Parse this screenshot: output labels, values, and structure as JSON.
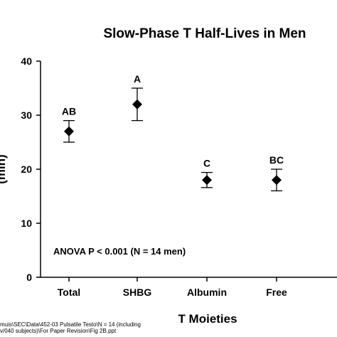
{
  "chart_data": {
    "type": "scatter",
    "title": "Slow-Phase T Half-Lives in Men",
    "xlabel": "T Moieties",
    "ylabel": "(min)",
    "categories": [
      "Total",
      "SHBG",
      "Albumin",
      "Free"
    ],
    "series": [
      {
        "values": [
          27,
          32,
          18,
          18
        ],
        "error_low": [
          25,
          29,
          16.6,
          16
        ],
        "error_high": [
          29,
          35,
          19.4,
          20
        ],
        "labels": [
          "AB",
          "A",
          "C",
          "BC"
        ]
      }
    ],
    "ylim": [
      0,
      40
    ],
    "yticks": [
      "0",
      "10",
      "20",
      "30",
      "40"
    ],
    "marker": "diamond",
    "grid": false,
    "annotation": "ANOVA P < 0.001 (N = 14 men)"
  },
  "footer": {
    "line1": "muis\\SEC\\Data\\452-03 Pulsatile Testo\\N = 14 (including",
    "line2": "v/040 subjects)\\For Paper Revision\\Fig 2B.ppt"
  }
}
